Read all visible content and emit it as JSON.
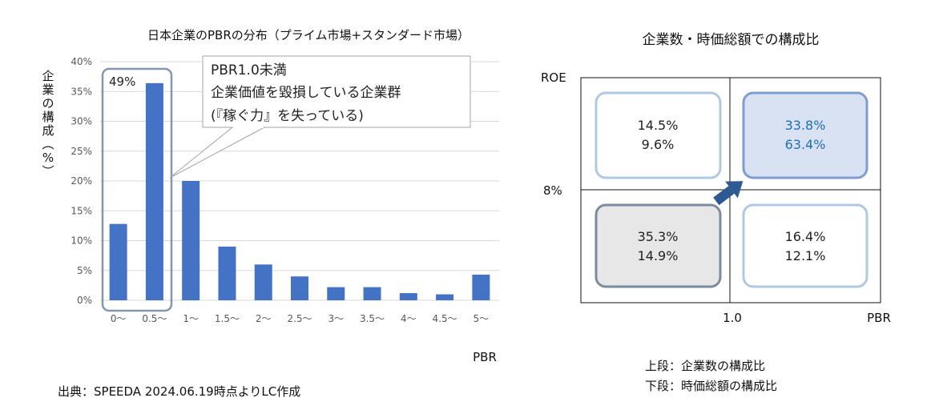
{
  "chart_data": [
    {
      "type": "bar",
      "title": "日本企業のPBRの分布（プライム市場+スタンダード市場）",
      "ylabel": "企業の構成（%）",
      "xlabel": "PBR",
      "ylim": [
        0,
        40
      ],
      "yticks": [
        "0%",
        "5%",
        "10%",
        "15%",
        "20%",
        "25%",
        "30%",
        "35%",
        "40%"
      ],
      "categories": [
        "0〜",
        "0.5〜",
        "1〜",
        "1.5〜",
        "2〜",
        "2.5〜",
        "3〜",
        "3.5〜",
        "4〜",
        "4.5〜",
        "5〜"
      ],
      "values": [
        12.8,
        36.4,
        20.0,
        9.0,
        6.0,
        4.0,
        2.2,
        2.2,
        1.2,
        1.0,
        4.3
      ],
      "bar_color": "#4472C4",
      "highlight_label": "49%",
      "callout": [
        "PBR1.0未満",
        "企業価値を毀損している企業群",
        "(『稼ぐ力』を失っている)"
      ]
    },
    {
      "type": "table",
      "title": "企業数・時価総額での構成比",
      "y_axis_label": "ROE",
      "y_threshold": "8%",
      "x_axis_label": "PBR",
      "x_threshold": "1.0",
      "quadrants": {
        "top_left": [
          "14.5%",
          "9.6%"
        ],
        "top_right": [
          "33.8%",
          "63.4%"
        ],
        "bottom_left": [
          "35.3%",
          "14.9%"
        ],
        "bottom_right": [
          "16.4%",
          "12.1%"
        ]
      },
      "colors": {
        "highlight_text": "#1F6FB8",
        "highlight_fill": "#D9E2F3",
        "gray_fill": "#E7E7E7",
        "arrow": "#2E5A93"
      }
    }
  ],
  "source": "出典：SPEEDA 2024.06.19時点よりLC作成",
  "legend": [
    "上段：企業数の構成比",
    "下段：時価総額の構成比"
  ]
}
